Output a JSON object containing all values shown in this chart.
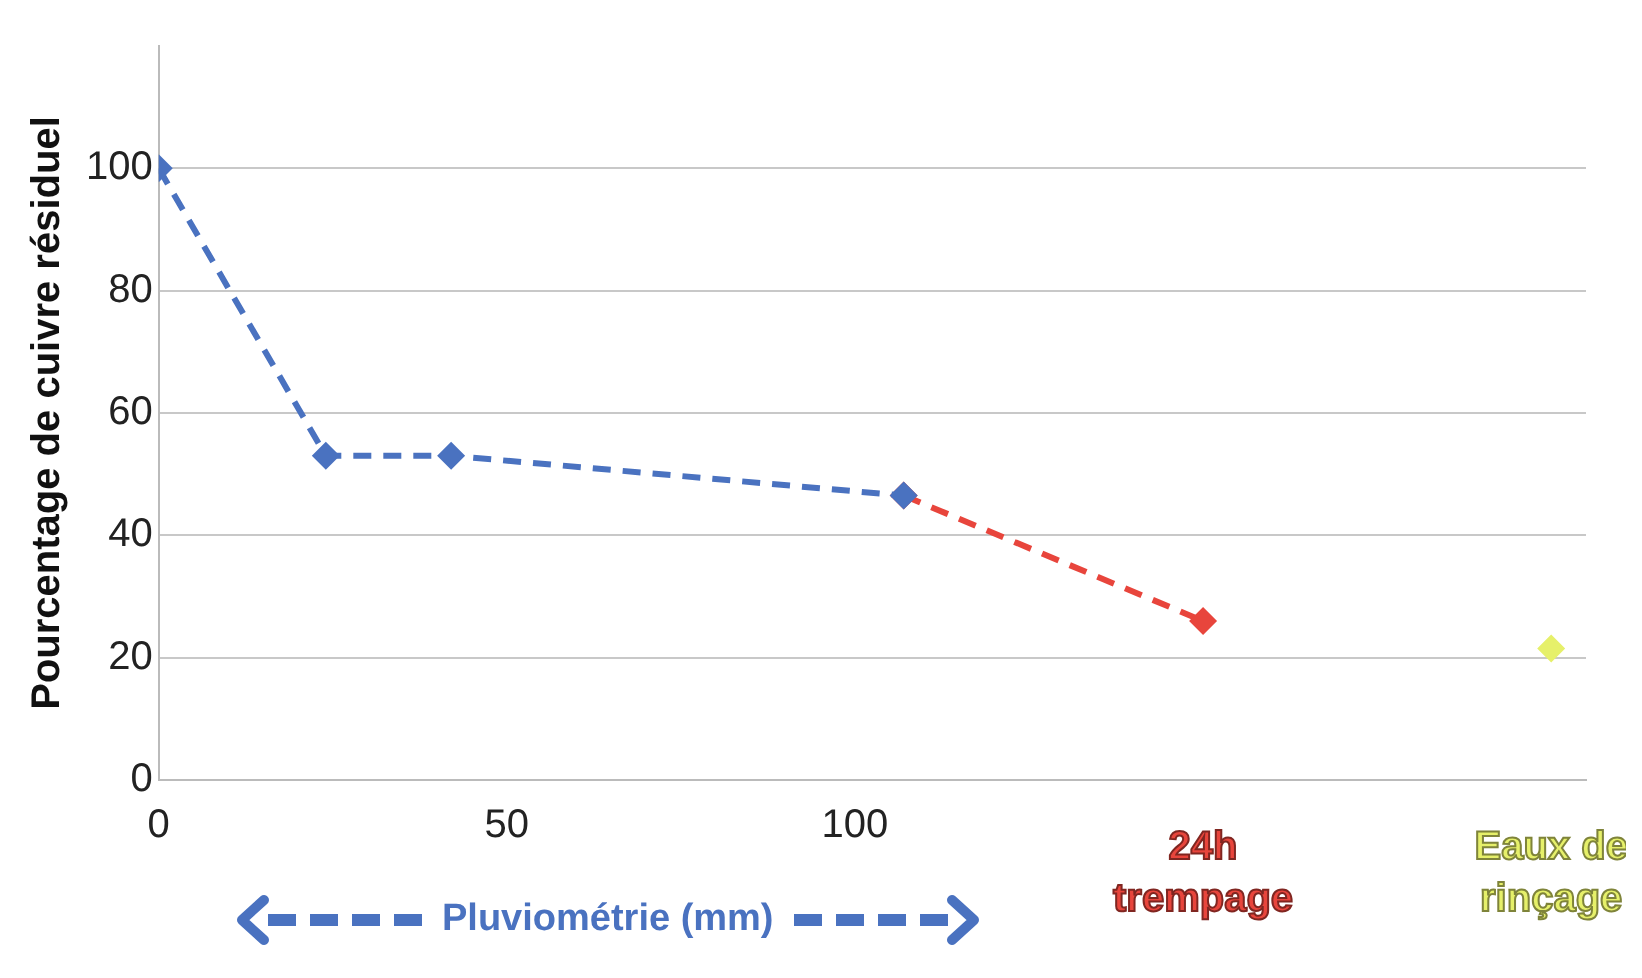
{
  "chart_data": {
    "type": "line",
    "xlabel": "Pluviométrie (mm)",
    "ylabel": "Pourcentage de cuivre résiduel",
    "series": [
      {
        "color": "#4a72c0",
        "x": [
          0,
          24,
          42,
          107
        ],
        "values": [
          100,
          53,
          53,
          46.5
        ]
      },
      {
        "name": "24h trempage",
        "color": "#e8453c",
        "x": [
          107,
          150
        ],
        "values": [
          46.5,
          26
        ]
      },
      {
        "name": "Eaux de rinçage",
        "color": "#e6f06a",
        "x": [
          200
        ],
        "values": [
          21.5
        ]
      }
    ],
    "xlim": [
      0,
      205
    ],
    "xticks": [
      0,
      50,
      100
    ],
    "ylim": [
      0,
      120
    ],
    "yticks": [
      0,
      20,
      40,
      60,
      80,
      100
    ],
    "grid": "y",
    "legend": false,
    "marker": "diamond",
    "line_style": "dashed"
  }
}
